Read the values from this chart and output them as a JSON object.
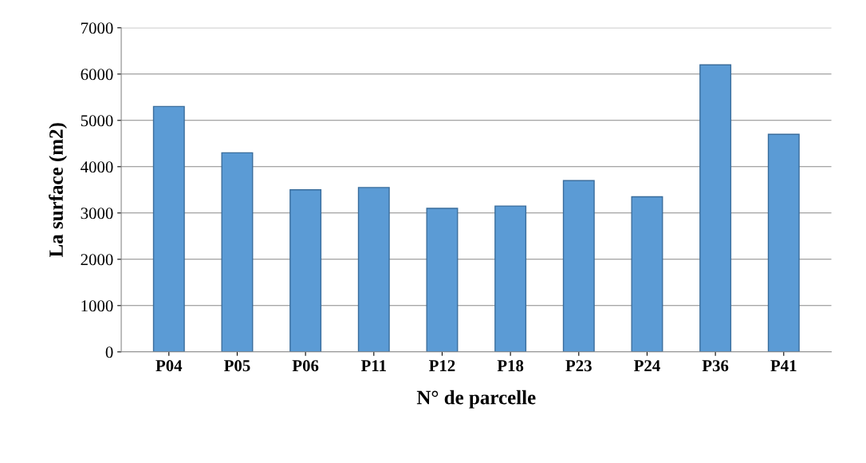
{
  "chart_data": {
    "type": "bar",
    "xlabel": "N° de parcelle",
    "ylabel": "La surface (m2)",
    "categories": [
      "P04",
      "P05",
      "P06",
      "P11",
      "P12",
      "P18",
      "P23",
      "P24",
      "P36",
      "P41"
    ],
    "values": [
      5300,
      4300,
      3500,
      3550,
      3100,
      3150,
      3700,
      3350,
      6200,
      4700
    ],
    "color": "#5b9bd5",
    "ylim": [
      0,
      7000
    ],
    "yticks": [
      0,
      1000,
      2000,
      3000,
      4000,
      5000,
      6000,
      7000
    ],
    "grid": "y"
  }
}
